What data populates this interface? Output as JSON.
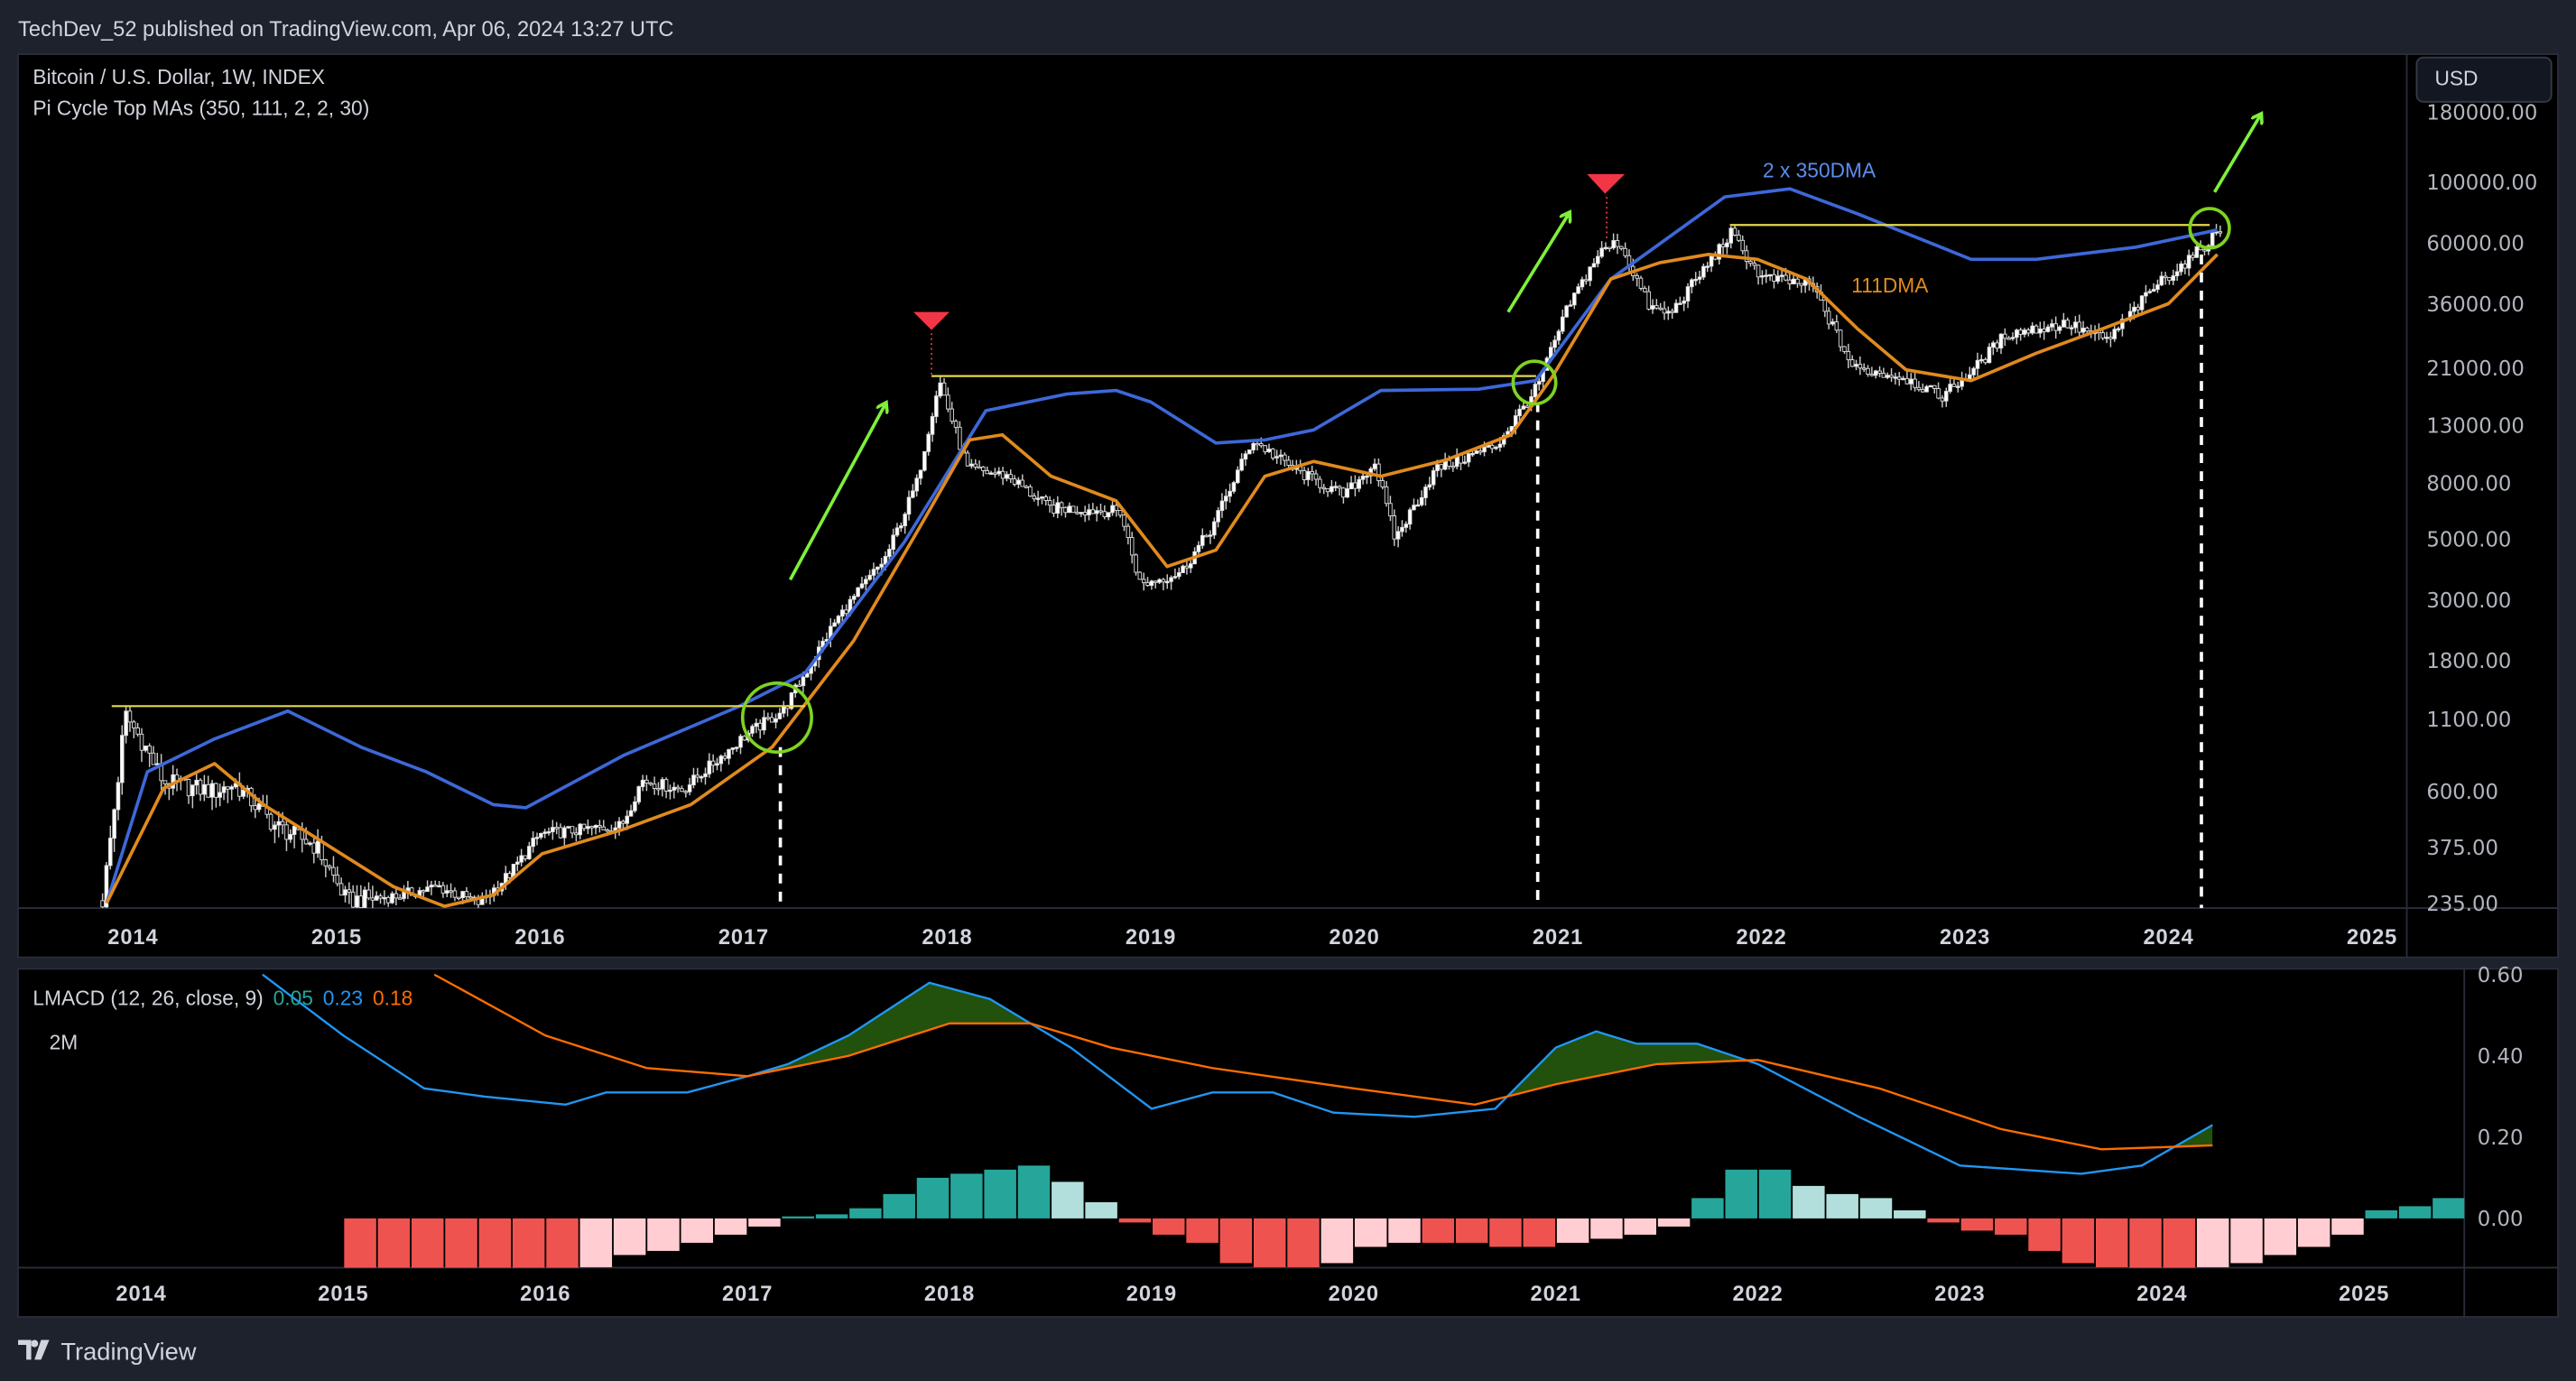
{
  "header": {
    "published": "TechDev_52 published on TradingView.com, Apr 06, 2024 13:27 UTC"
  },
  "main_pane": {
    "symbol_legend": "Bitcoin / U.S. Dollar, 1W, INDEX",
    "indicator_legend": "Pi Cycle Top MAs (350, 111, 2, 2, 30)",
    "currency_button": "USD",
    "label_350": "2 x 350DMA",
    "label_111": "111DMA"
  },
  "macd_pane": {
    "legend": "LMACD (12, 26, close, 9)",
    "hist_value": "0.05",
    "macd_value": "0.23",
    "signal_value": "0.18",
    "timeframe_note": "2M"
  },
  "footer": {
    "brand": "TradingView"
  },
  "colors": {
    "background": "#000000",
    "frame": "#1e222d",
    "ma350": "#3d68d8",
    "ma111": "#e08a1e",
    "macd": "#2196f3",
    "signal": "#ff6d00",
    "hist_up": "#26a69a",
    "hist_up_fall": "#b2dfdb",
    "hist_down": "#ef5350",
    "hist_down_rise": "#ffcdd2",
    "hline": "#e6d84a",
    "circle": "#7ed321",
    "arrow": "#7ef03a",
    "top_marker": "#f23645"
  },
  "chart_data": [
    {
      "type": "candlestick",
      "title": "Bitcoin / U.S. Dollar, 1W, INDEX",
      "yscale": "log",
      "ylim": [
        235,
        180000
      ],
      "x_ticks": [
        "2014",
        "2015",
        "2016",
        "2017",
        "2018",
        "2019",
        "2020",
        "2021",
        "2022",
        "2023",
        "2024",
        "2025"
      ],
      "y_ticks": [
        {
          "v": 180000,
          "label": "180000.00"
        },
        {
          "v": 100000,
          "label": "100000.00"
        },
        {
          "v": 60000,
          "label": "60000.00"
        },
        {
          "v": 36000,
          "label": "36000.00"
        },
        {
          "v": 21000,
          "label": "21000.00"
        },
        {
          "v": 13000,
          "label": "13000.00"
        },
        {
          "v": 8000,
          "label": "8000.00"
        },
        {
          "v": 5000,
          "label": "5000.00"
        },
        {
          "v": 3000,
          "label": "3000.00"
        },
        {
          "v": 1800,
          "label": "1800.00"
        },
        {
          "v": 1100,
          "label": "1100.00"
        },
        {
          "v": 600,
          "label": "600.00"
        },
        {
          "v": 375,
          "label": "375.00"
        },
        {
          "v": 235,
          "label": "235.00"
        }
      ],
      "price_path": [
        [
          2013.85,
          240
        ],
        [
          2013.93,
          700
        ],
        [
          2013.96,
          1150
        ],
        [
          2014.05,
          900
        ],
        [
          2014.15,
          650
        ],
        [
          2014.4,
          600
        ],
        [
          2014.5,
          640
        ],
        [
          2014.7,
          450
        ],
        [
          2014.9,
          380
        ],
        [
          2015.05,
          240
        ],
        [
          2015.3,
          250
        ],
        [
          2015.5,
          270
        ],
        [
          2015.7,
          235
        ],
        [
          2015.85,
          300
        ],
        [
          2016.0,
          420
        ],
        [
          2016.4,
          450
        ],
        [
          2016.5,
          660
        ],
        [
          2016.7,
          610
        ],
        [
          2017.0,
          950
        ],
        [
          2017.2,
          1200
        ],
        [
          2017.45,
          2500
        ],
        [
          2017.7,
          4300
        ],
        [
          2017.85,
          8000
        ],
        [
          2017.96,
          19000
        ],
        [
          2018.1,
          9000
        ],
        [
          2018.3,
          8500
        ],
        [
          2018.5,
          6500
        ],
        [
          2018.85,
          6300
        ],
        [
          2018.95,
          3400
        ],
        [
          2019.15,
          3800
        ],
        [
          2019.3,
          5500
        ],
        [
          2019.5,
          11500
        ],
        [
          2019.7,
          9000
        ],
        [
          2019.95,
          7200
        ],
        [
          2020.1,
          9500
        ],
        [
          2020.2,
          5000
        ],
        [
          2020.4,
          9000
        ],
        [
          2020.7,
          11000
        ],
        [
          2020.9,
          18000
        ],
        [
          2021.05,
          35000
        ],
        [
          2021.2,
          55000
        ],
        [
          2021.3,
          61000
        ],
        [
          2021.45,
          35000
        ],
        [
          2021.55,
          33000
        ],
        [
          2021.85,
          65000
        ],
        [
          2022.0,
          45000
        ],
        [
          2022.25,
          42000
        ],
        [
          2022.45,
          21000
        ],
        [
          2022.7,
          19500
        ],
        [
          2022.88,
          16500
        ],
        [
          2023.05,
          21000
        ],
        [
          2023.2,
          28000
        ],
        [
          2023.5,
          30500
        ],
        [
          2023.7,
          26500
        ],
        [
          2023.95,
          43000
        ],
        [
          2024.1,
          52000
        ],
        [
          2024.27,
          69000
        ]
      ],
      "series": [
        {
          "name": "2 x 350DMA",
          "points": [
            [
              2013.87,
              235
            ],
            [
              2014.07,
              708
            ],
            [
              2014.4,
              933
            ],
            [
              2014.76,
              1180
            ],
            [
              2015.12,
              871
            ],
            [
              2015.44,
              708
            ],
            [
              2015.77,
              538
            ],
            [
              2015.93,
              524
            ],
            [
              2016.41,
              813
            ],
            [
              2016.98,
              1230
            ],
            [
              2017.3,
              1620
            ],
            [
              2017.79,
              4890
            ],
            [
              2018.19,
              14700
            ],
            [
              2018.59,
              16900
            ],
            [
              2018.83,
              17400
            ],
            [
              2019.0,
              15800
            ],
            [
              2019.32,
              11200
            ],
            [
              2019.56,
              11500
            ],
            [
              2019.8,
              12500
            ],
            [
              2020.13,
              17400
            ],
            [
              2020.61,
              17600
            ],
            [
              2020.89,
              18900
            ],
            [
              2021.26,
              44400
            ],
            [
              2021.82,
              88400
            ],
            [
              2022.14,
              94600
            ],
            [
              2022.47,
              76900
            ],
            [
              2023.03,
              52400
            ],
            [
              2023.35,
              52400
            ],
            [
              2023.84,
              58000
            ],
            [
              2024.24,
              67000
            ]
          ]
        },
        {
          "name": "111DMA",
          "points": [
            [
              2013.87,
              235
            ],
            [
              2013.99,
              356
            ],
            [
              2014.15,
              617
            ],
            [
              2014.4,
              759
            ],
            [
              2014.64,
              538
            ],
            [
              2014.96,
              381
            ],
            [
              2015.28,
              270
            ],
            [
              2015.53,
              229
            ],
            [
              2015.77,
              252
            ],
            [
              2016.01,
              356
            ],
            [
              2016.41,
              437
            ],
            [
              2016.74,
              538
            ],
            [
              2017.14,
              871
            ],
            [
              2017.54,
              2130
            ],
            [
              2017.87,
              5610
            ],
            [
              2018.11,
              11500
            ],
            [
              2018.27,
              12000
            ],
            [
              2018.51,
              8470
            ],
            [
              2018.83,
              6890
            ],
            [
              2019.08,
              3970
            ],
            [
              2019.32,
              4560
            ],
            [
              2019.56,
              8470
            ],
            [
              2019.8,
              9600
            ],
            [
              2020.13,
              8470
            ],
            [
              2020.45,
              9720
            ],
            [
              2020.77,
              12000
            ],
            [
              2020.97,
              19400
            ],
            [
              2021.26,
              44400
            ],
            [
              2021.5,
              50900
            ],
            [
              2021.74,
              54600
            ],
            [
              2021.98,
              52400
            ],
            [
              2022.22,
              44400
            ],
            [
              2022.47,
              29300
            ],
            [
              2022.71,
              20700
            ],
            [
              2023.03,
              18900
            ],
            [
              2023.35,
              23800
            ],
            [
              2023.68,
              29300
            ],
            [
              2024.0,
              36100
            ],
            [
              2024.24,
              54600
            ]
          ]
        }
      ],
      "annotations": {
        "horizontal_levels": [
          [
            2013.9,
            2017.2,
            1230
          ],
          [
            2017.96,
            2020.9,
            19600
          ],
          [
            2021.88,
            2024.25,
            69800
          ]
        ],
        "cross_circles": [
          [
            2017.2,
            1150
          ],
          [
            2020.9,
            19000
          ],
          [
            2024.22,
            68000
          ]
        ],
        "top_markers": [
          [
            2017.96,
            19600
          ],
          [
            2021.27,
            61000
          ]
        ]
      }
    },
    {
      "type": "bar+line",
      "title": "LMACD (12, 26, close, 9)",
      "ylim": [
        -0.12,
        0.6
      ],
      "y_ticks": [
        {
          "v": 0.6,
          "label": "0.60"
        },
        {
          "v": 0.4,
          "label": "0.40"
        },
        {
          "v": 0.2,
          "label": "0.20"
        },
        {
          "v": 0.0,
          "label": "0.00"
        }
      ],
      "x_ticks": [
        "2014",
        "2015",
        "2016",
        "2017",
        "2018",
        "2019",
        "2020",
        "2021",
        "2022",
        "2023",
        "2024",
        "2025"
      ],
      "histogram": {
        "start": 2015.0,
        "step_years": 0.1667,
        "values": [
          -0.13,
          -0.13,
          -0.13,
          -0.13,
          -0.13,
          -0.13,
          -0.13,
          -0.12,
          -0.09,
          -0.08,
          -0.06,
          -0.04,
          -0.02,
          0.005,
          0.01,
          0.025,
          0.06,
          0.1,
          0.11,
          0.12,
          0.13,
          0.09,
          0.04,
          -0.01,
          -0.04,
          -0.06,
          -0.11,
          -0.12,
          -0.12,
          -0.11,
          -0.07,
          -0.06,
          -0.06,
          -0.06,
          -0.07,
          -0.07,
          -0.06,
          -0.05,
          -0.04,
          -0.02,
          0.05,
          0.12,
          0.12,
          0.08,
          0.06,
          0.05,
          0.02,
          -0.01,
          -0.03,
          -0.04,
          -0.08,
          -0.11,
          -0.12,
          -0.13,
          -0.13,
          -0.12,
          -0.11,
          -0.09,
          -0.07,
          -0.04,
          0.02,
          0.03,
          0.05
        ]
      },
      "series": [
        {
          "name": "MACD",
          "points": [
            [
              2014.6,
              0.6
            ],
            [
              2015.0,
              0.45
            ],
            [
              2015.4,
              0.32
            ],
            [
              2015.7,
              0.3
            ],
            [
              2016.1,
              0.28
            ],
            [
              2016.3,
              0.31
            ],
            [
              2016.7,
              0.31
            ],
            [
              2017.0,
              0.35
            ],
            [
              2017.2,
              0.38
            ],
            [
              2017.5,
              0.45
            ],
            [
              2017.9,
              0.58
            ],
            [
              2018.2,
              0.54
            ],
            [
              2018.6,
              0.42
            ],
            [
              2019.0,
              0.27
            ],
            [
              2019.3,
              0.31
            ],
            [
              2019.6,
              0.31
            ],
            [
              2019.9,
              0.26
            ],
            [
              2020.3,
              0.25
            ],
            [
              2020.7,
              0.27
            ],
            [
              2021.0,
              0.42
            ],
            [
              2021.2,
              0.46
            ],
            [
              2021.4,
              0.43
            ],
            [
              2021.7,
              0.43
            ],
            [
              2022.0,
              0.38
            ],
            [
              2022.5,
              0.25
            ],
            [
              2023.0,
              0.13
            ],
            [
              2023.3,
              0.12
            ],
            [
              2023.6,
              0.11
            ],
            [
              2023.9,
              0.13
            ],
            [
              2024.25,
              0.23
            ]
          ]
        },
        {
          "name": "Signal",
          "points": [
            [
              2015.45,
              0.6
            ],
            [
              2016.0,
              0.45
            ],
            [
              2016.5,
              0.37
            ],
            [
              2017.0,
              0.35
            ],
            [
              2017.5,
              0.4
            ],
            [
              2018.0,
              0.48
            ],
            [
              2018.4,
              0.48
            ],
            [
              2018.8,
              0.42
            ],
            [
              2019.3,
              0.37
            ],
            [
              2020.0,
              0.32
            ],
            [
              2020.6,
              0.28
            ],
            [
              2021.0,
              0.33
            ],
            [
              2021.5,
              0.38
            ],
            [
              2022.0,
              0.39
            ],
            [
              2022.6,
              0.32
            ],
            [
              2023.2,
              0.22
            ],
            [
              2023.7,
              0.17
            ],
            [
              2024.25,
              0.18
            ]
          ]
        }
      ]
    }
  ]
}
